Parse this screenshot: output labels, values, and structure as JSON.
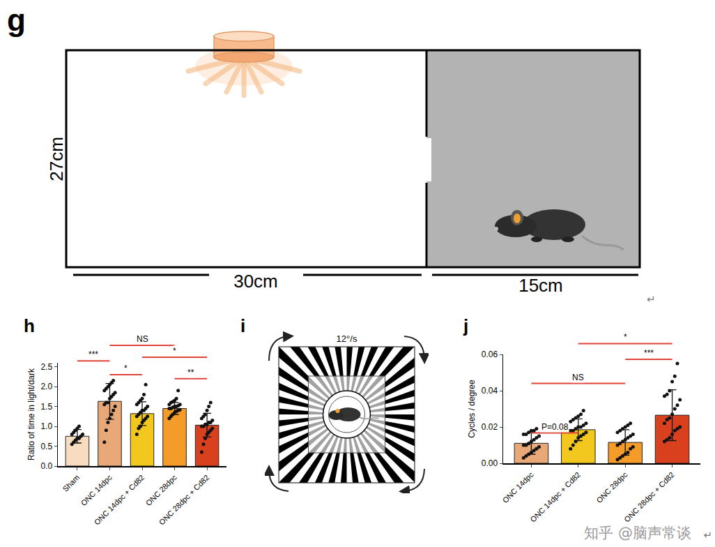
{
  "chart_data": [
    {
      "panel": "h",
      "type": "bar",
      "ylabel": "Ratio of time in light/dark",
      "categories": [
        "Sham",
        "ONC 14dpc",
        "ONC 14dpc + Cd82",
        "ONC 28dpc",
        "ONC 28dpc + Cd82"
      ],
      "values": [
        0.75,
        1.63,
        1.32,
        1.45,
        1.03
      ],
      "errors": [
        0.17,
        0.45,
        0.3,
        0.15,
        0.3
      ],
      "colors": [
        "#f8dcc0",
        "#e8a878",
        "#f2c81e",
        "#f39c2a",
        "#d9411e"
      ],
      "points": [
        [
          0.55,
          0.6,
          0.65,
          0.7,
          0.7,
          0.75,
          0.8,
          0.8,
          0.85,
          0.9,
          0.95,
          1.0
        ],
        [
          0.6,
          0.9,
          1.1,
          1.2,
          1.3,
          1.4,
          1.5,
          1.55,
          1.6,
          1.6,
          1.7,
          1.75,
          1.8,
          1.85,
          1.9,
          1.95,
          2.0,
          2.05,
          2.1,
          2.15
        ],
        [
          0.8,
          0.95,
          1.0,
          1.1,
          1.15,
          1.2,
          1.25,
          1.25,
          1.3,
          1.35,
          1.4,
          1.4,
          1.45,
          1.5,
          1.55,
          1.6,
          1.65,
          1.7,
          1.8,
          2.05
        ],
        [
          1.2,
          1.25,
          1.3,
          1.35,
          1.38,
          1.4,
          1.42,
          1.45,
          1.45,
          1.48,
          1.5,
          1.5,
          1.52,
          1.55,
          1.55,
          1.6,
          1.62,
          1.65,
          1.7,
          1.9
        ],
        [
          0.35,
          0.55,
          0.7,
          0.8,
          0.85,
          0.9,
          0.95,
          1.0,
          1.0,
          1.05,
          1.05,
          1.1,
          1.1,
          1.15,
          1.2,
          1.25,
          1.3,
          1.4,
          1.5,
          1.6
        ]
      ],
      "ylim": [
        0,
        2.6
      ],
      "yticks": [
        {
          "value": 0,
          "label": "0.0"
        },
        0.5,
        {
          "value": 1,
          "label": "1.0"
        },
        1.5,
        {
          "value": 2,
          "label": "2.0"
        },
        2.5
      ],
      "comparisons": [
        {
          "from": 0,
          "to": 1,
          "y": 2.65,
          "text": "***"
        },
        {
          "from": 1,
          "to": 3,
          "y": 3.04,
          "text": "NS"
        },
        {
          "from": 1,
          "to": 2,
          "y": 2.3,
          "text": "*"
        },
        {
          "from": 2,
          "to": 4,
          "y": 2.74,
          "text": "*"
        },
        {
          "from": 3,
          "to": 4,
          "y": 2.2,
          "text": "**"
        }
      ]
    },
    {
      "panel": "j",
      "type": "bar",
      "ylabel": "Cycles / degree",
      "categories": [
        "ONC 14dpc",
        "ONC 14dpc + Cd82",
        "ONC 28dpc",
        "ONC 28dpc + Cd82"
      ],
      "values": [
        0.011,
        0.0185,
        0.0115,
        0.0265
      ],
      "errors": [
        0.006,
        0.006,
        0.007,
        0.014
      ],
      "colors": [
        "#e8a878",
        "#f2c81e",
        "#f39c2a",
        "#d9411e"
      ],
      "points": [
        [
          0.003,
          0.004,
          0.005,
          0.006,
          0.007,
          0.008,
          0.009,
          0.01,
          0.01,
          0.011,
          0.012,
          0.013,
          0.014,
          0.015,
          0.016,
          0.016,
          0.017,
          0.018,
          0.018,
          0.019
        ],
        [
          0.008,
          0.01,
          0.012,
          0.014,
          0.015,
          0.016,
          0.017,
          0.018,
          0.018,
          0.019,
          0.02,
          0.02,
          0.021,
          0.022,
          0.023,
          0.024,
          0.025,
          0.026,
          0.027,
          0.029
        ],
        [
          0.002,
          0.003,
          0.004,
          0.005,
          0.006,
          0.008,
          0.009,
          0.01,
          0.011,
          0.012,
          0.013,
          0.014,
          0.015,
          0.016,
          0.017,
          0.018,
          0.019,
          0.02,
          0.021,
          0.022
        ],
        [
          0.012,
          0.013,
          0.014,
          0.016,
          0.018,
          0.019,
          0.02,
          0.022,
          0.024,
          0.025,
          0.027,
          0.03,
          0.032,
          0.035,
          0.037,
          0.038,
          0.04,
          0.045,
          0.048,
          0.055
        ]
      ],
      "ylim": [
        0,
        0.06
      ],
      "yticks": [
        {
          "value": 0,
          "label": "0.00"
        },
        0.02,
        0.04,
        0.06
      ],
      "comparisons": [
        {
          "from": 0,
          "to": 1,
          "y": 0.0167,
          "text": "P=0.08"
        },
        {
          "from": 0,
          "to": 2,
          "y": 0.044,
          "text": "NS"
        },
        {
          "from": 2,
          "to": 3,
          "y": 0.0573,
          "text": "***"
        },
        {
          "from": 1,
          "to": 3,
          "y": 0.066,
          "text": "*"
        }
      ]
    }
  ],
  "diagrams": [
    {
      "panel": "g",
      "height_label": "27cm",
      "light_width_label": "30cm",
      "dark_width_label": "15cm"
    },
    {
      "panel": "i",
      "speed_label": "12°/s"
    }
  ],
  "watermark": "知乎 @脑声常谈",
  "return_marks": [
    "↵",
    "↵"
  ]
}
